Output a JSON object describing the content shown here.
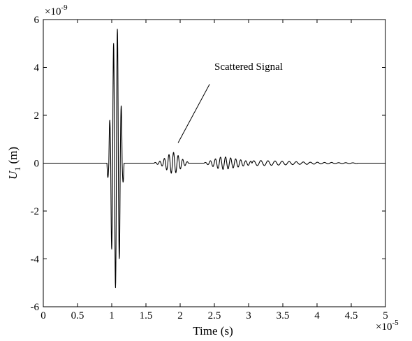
{
  "chart_data": {
    "type": "line",
    "xlabel": "Time (s)",
    "ylabel": {
      "main": "U",
      "sub": "1",
      "unit": " (m)"
    },
    "x_multiplier": {
      "base": "×10",
      "exp": "-5"
    },
    "y_multiplier": {
      "base": "×10",
      "exp": "-9"
    },
    "xlim": [
      0,
      5
    ],
    "ylim": [
      -6,
      6
    ],
    "x_ticks": [
      0,
      0.5,
      1,
      1.5,
      2,
      2.5,
      3,
      3.5,
      4,
      4.5,
      5
    ],
    "x_tick_labels": [
      "0",
      "0.5",
      "1",
      "1.5",
      "2",
      "2.5",
      "3",
      "3.5",
      "4",
      "4.5",
      "5"
    ],
    "y_ticks": [
      -6,
      -4,
      -2,
      0,
      2,
      4,
      6
    ],
    "y_tick_labels": [
      "-6",
      "-4",
      "-2",
      "0",
      "2",
      "4",
      "6"
    ],
    "grid": false,
    "series": [
      {
        "color": "#000000",
        "packets": [
          {
            "t0": 0.93,
            "t1": 1.18,
            "peaks": [
              -0.6,
              1.8,
              -3.6,
              5.0,
              -5.2,
              5.6,
              -4.0,
              2.4,
              -0.8
            ]
          },
          {
            "t0": 1.62,
            "t1": 2.12,
            "peaks": [
              0.03,
              -0.05,
              0.08,
              -0.12,
              0.2,
              -0.28,
              0.36,
              -0.42,
              0.45,
              -0.4,
              0.32,
              -0.24,
              0.16,
              -0.1,
              0.06
            ]
          },
          {
            "t0": 2.35,
            "t1": 3.05,
            "peaks": [
              0.03,
              -0.06,
              0.1,
              -0.14,
              0.18,
              -0.22,
              0.25,
              -0.26,
              0.26,
              -0.24,
              0.22,
              -0.2,
              0.18,
              -0.16,
              0.14,
              -0.12,
              0.1,
              -0.09,
              0.08
            ]
          },
          {
            "t0": 3.05,
            "t1": 4.6,
            "peaks": [
              0.1,
              -0.1,
              0.11,
              -0.1,
              0.1,
              -0.09,
              0.09,
              -0.08,
              0.08,
              -0.07,
              0.07,
              -0.06,
              0.06,
              -0.05,
              0.05,
              -0.05,
              0.04,
              -0.04,
              0.04,
              -0.03,
              0.03,
              -0.03,
              0.03,
              -0.02,
              0.02,
              -0.02,
              0.02,
              -0.02,
              0.015,
              -0.015
            ]
          }
        ]
      }
    ],
    "annotations": [
      {
        "text": "Scattered Signal",
        "x": 2.5,
        "y": 3.9,
        "arrow_from": [
          2.43,
          3.3
        ],
        "arrow_to": [
          1.97,
          0.85
        ]
      }
    ]
  }
}
